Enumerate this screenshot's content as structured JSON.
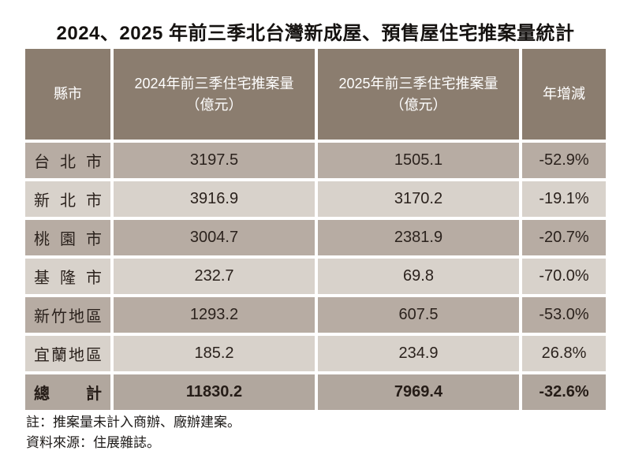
{
  "title": "2024、2025 年前三季北台灣新成屋、預售屋住宅推案量統計",
  "table": {
    "columns": [
      {
        "label": "縣市",
        "sub": ""
      },
      {
        "label": "2024年前三季住宅推案量",
        "sub": "（億元）"
      },
      {
        "label": "2025年前三季住宅推案量",
        "sub": "（億元）"
      },
      {
        "label": "年增減",
        "sub": ""
      }
    ]
  },
  "chart_data": {
    "type": "table",
    "title": "2024、2025 年前三季北台灣新成屋、預售屋住宅推案量統計",
    "columns": [
      "縣市",
      "2024年前三季住宅推案量（億元）",
      "2025年前三季住宅推案量（億元）",
      "年增減"
    ],
    "rows": [
      [
        "台北市",
        "3197.5",
        "1505.1",
        "-52.9%"
      ],
      [
        "新北市",
        "3916.9",
        "3170.2",
        "-19.1%"
      ],
      [
        "桃園市",
        "3004.7",
        "2381.9",
        "-20.7%"
      ],
      [
        "基隆市",
        "232.7",
        "69.8",
        "-70.0%"
      ],
      [
        "新竹地區",
        "1293.2",
        "607.5",
        "-53.0%"
      ],
      [
        "宜蘭地區",
        "185.2",
        "234.9",
        "26.8%"
      ],
      [
        "總計",
        "11830.2",
        "7969.4",
        "-32.6%"
      ]
    ],
    "notes": [
      "註：推案量未計入商辦、廠辦建案。",
      "資料來源：住展雜誌。"
    ]
  },
  "notes": {
    "line1": "註：推案量未計入商辦、廠辦建案。",
    "line2": "資料來源：住展雜誌。"
  },
  "colors": {
    "header_bg": "#8b7d6f",
    "header_text": "#ffffff",
    "row_odd_bg": "#b7aca3",
    "row_even_bg": "#d8d2cb",
    "total_row_bg": "#b1a79e",
    "body_text": "#2b221d",
    "page_bg": "#ffffff"
  }
}
